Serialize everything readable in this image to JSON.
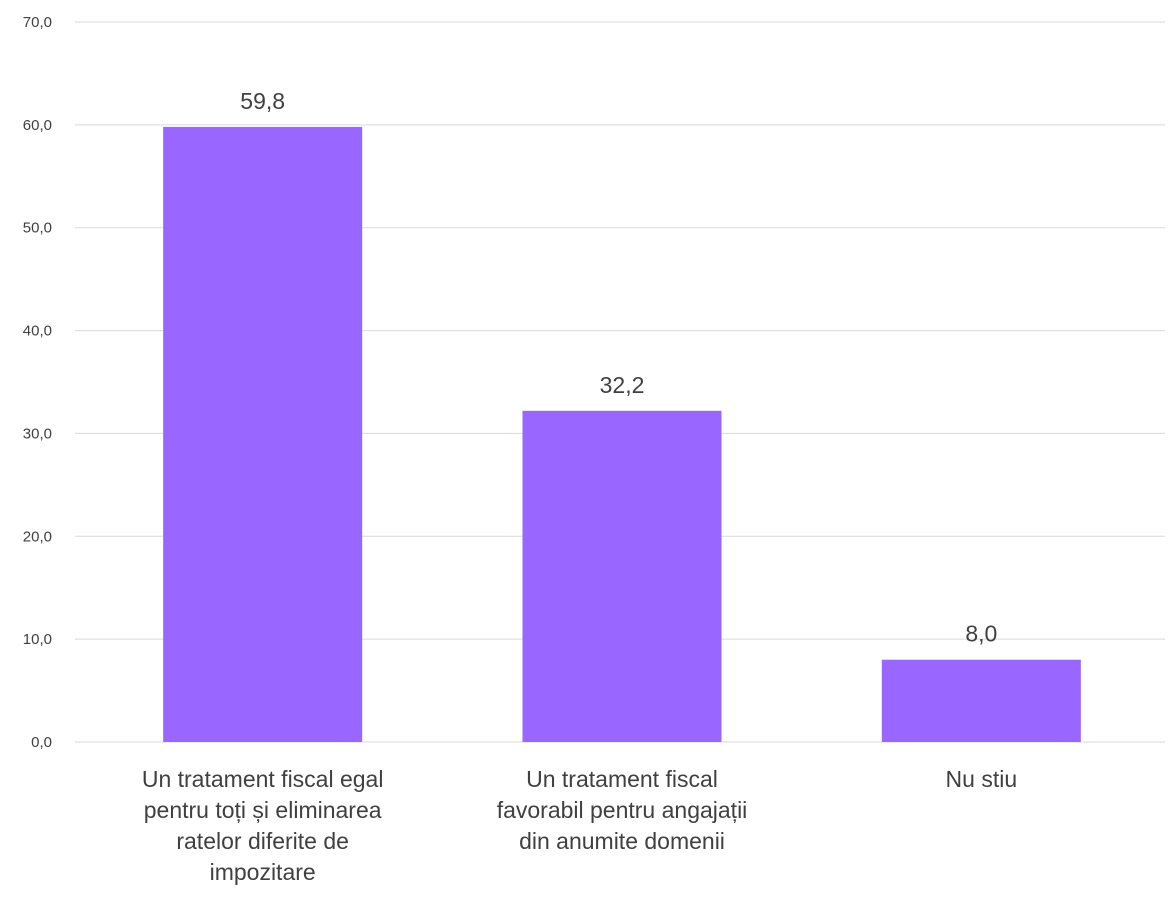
{
  "chart_data": {
    "type": "bar",
    "categories": [
      "Un tratament fiscal egal pentru toți și eliminarea ratelor diferite de impozitare",
      "Un tratament fiscal favorabil pentru angajații din anumite domenii",
      "Nu stiu"
    ],
    "values": [
      59.8,
      32.2,
      8.0
    ],
    "data_labels": [
      "59,8",
      "32,2",
      "8,0"
    ],
    "y_ticks": [
      "0,0",
      "10,0",
      "20,0",
      "30,0",
      "40,0",
      "50,0",
      "60,0",
      "70,0"
    ],
    "y_tick_values": [
      0,
      10,
      20,
      30,
      40,
      50,
      60,
      70
    ],
    "ylim": [
      0,
      70
    ],
    "grid": true,
    "legend": "none",
    "bar_color": "#9966FF",
    "grid_color": "#D9D9D9",
    "text_color": "#404040"
  }
}
